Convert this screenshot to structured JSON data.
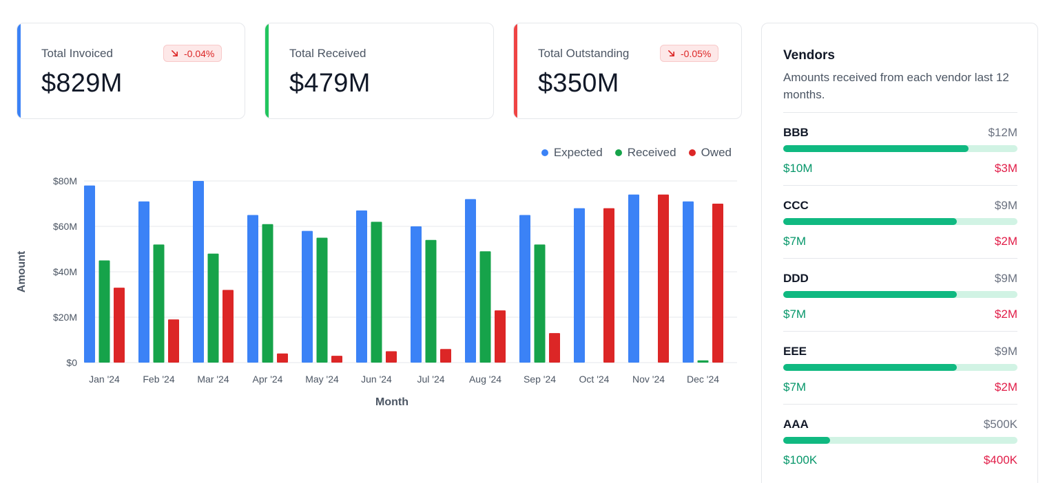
{
  "kpis": [
    {
      "label": "Total Invoiced",
      "value": "$829M",
      "badge": "-0.04%",
      "accent": "#3b82f6"
    },
    {
      "label": "Total Received",
      "value": "$479M",
      "badge": null,
      "accent": "#22c55e"
    },
    {
      "label": "Total Outstanding",
      "value": "$350M",
      "badge": "-0.05%",
      "accent": "#ef4444"
    }
  ],
  "badge_icon": "arrow-down-right-icon",
  "vendors": {
    "title": "Vendors",
    "subtitle": "Amounts received from each vendor last 12 months.",
    "items": [
      {
        "name": "BBB",
        "total": "$12M",
        "received": "$10M",
        "owed": "$3M",
        "progress": 0.79
      },
      {
        "name": "CCC",
        "total": "$9M",
        "received": "$7M",
        "owed": "$2M",
        "progress": 0.74
      },
      {
        "name": "DDD",
        "total": "$9M",
        "received": "$7M",
        "owed": "$2M",
        "progress": 0.74
      },
      {
        "name": "EEE",
        "total": "$9M",
        "received": "$7M",
        "owed": "$2M",
        "progress": 0.74
      },
      {
        "name": "AAA",
        "total": "$500K",
        "received": "$100K",
        "owed": "$400K",
        "progress": 0.2
      }
    ]
  },
  "chart_data": {
    "type": "bar",
    "categories": [
      "Jan '24",
      "Feb '24",
      "Mar '24",
      "Apr '24",
      "May '24",
      "Jun '24",
      "Jul '24",
      "Aug '24",
      "Sep '24",
      "Oct '24",
      "Nov '24",
      "Dec '24"
    ],
    "series": [
      {
        "name": "Expected",
        "color": "#3b82f6",
        "values": [
          78,
          71,
          80,
          65,
          58,
          67,
          60,
          72,
          65,
          68,
          74,
          71
        ]
      },
      {
        "name": "Received",
        "color": "#16a34a",
        "values": [
          45,
          52,
          48,
          61,
          55,
          62,
          54,
          49,
          52,
          0,
          0,
          1
        ]
      },
      {
        "name": "Owed",
        "color": "#dc2626",
        "values": [
          33,
          19,
          32,
          4,
          3,
          5,
          6,
          23,
          13,
          68,
          74,
          70
        ]
      }
    ],
    "yticks": [
      "$0",
      "$20M",
      "$40M",
      "$60M",
      "$80M"
    ],
    "ylim": [
      0,
      80
    ],
    "xlabel": "Month",
    "ylabel": "Amount",
    "grid": true,
    "legend": "top-right"
  }
}
